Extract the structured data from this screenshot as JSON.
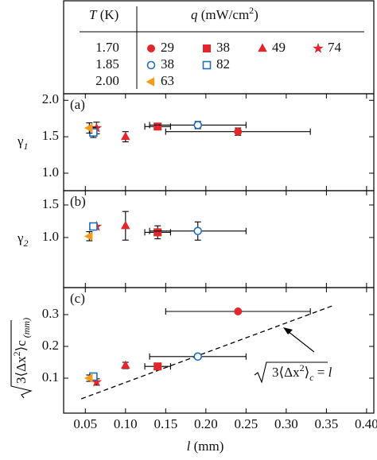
{
  "legend": {
    "t_header": [
      "T",
      " (K)"
    ],
    "q_header": [
      "q",
      " (mW/cm",
      "2",
      ")"
    ]
  },
  "chart_data": {
    "type": "scatter",
    "xlabel": [
      "l",
      " (mm)"
    ],
    "xlim": [
      0.023,
      0.409
    ],
    "xticks": [
      0.05,
      {
        "value": 0.1,
        "label": "0.10"
      },
      0.15,
      {
        "value": 0.2,
        "label": "0.20"
      },
      0.25,
      {
        "value": 0.3,
        "label": "0.30"
      },
      0.35,
      {
        "value": 0.4,
        "label": "0.40"
      }
    ],
    "panels": [
      {
        "label": "(a)",
        "ylabel": [
          "γ",
          "1"
        ],
        "ylim": [
          0.76,
          2.09
        ],
        "yticks": [
          {
            "value": 1,
            "label": "1.0"
          },
          1.5,
          {
            "value": 2,
            "label": "2.0"
          }
        ]
      },
      {
        "label": "(b)",
        "ylabel": [
          "γ",
          "2"
        ],
        "ylim": [
          0.23,
          1.72
        ],
        "yticks": [
          {
            "value": 1,
            "label": "1.0"
          },
          1.5
        ]
      },
      {
        "label": "(c)",
        "ylabel": [
          "3",
          "⟨Δx",
          "2",
          "⟩",
          "c",
          " (mm)"
        ],
        "ylim": [
          -0.01,
          0.385
        ],
        "yticks": [
          0.1,
          0.2,
          0.3
        ],
        "fit_line": {
          "x": [
            0.045,
            0.36
          ],
          "y": [
            0.035,
            0.33
          ]
        },
        "annotation": [
          "3",
          "⟨Δx",
          "2",
          "⟩",
          "c",
          " = ",
          "l"
        ]
      }
    ],
    "groups": [
      {
        "T": "1.70",
        "series": [
          {
            "name": "29",
            "marker": "circle",
            "filled": true,
            "color": "#e3262b",
            "x": 0.24,
            "xerr": 0.09,
            "y": [
              1.57,
              null,
              0.31
            ],
            "yerr": [
              0.05,
              null,
              null
            ]
          },
          {
            "name": "38",
            "marker": "square",
            "filled": true,
            "color": "#e3262b",
            "x": 0.14,
            "xerr": 0.016,
            "y": [
              1.64,
              1.08,
              0.137
            ],
            "yerr": [
              0.03,
              0.1,
              null
            ]
          },
          {
            "name": "49",
            "marker": "triangle",
            "filled": true,
            "color": "#e3262b",
            "x": 0.1,
            "xerr": null,
            "y": [
              1.5,
              1.18,
              0.14
            ],
            "yerr": [
              0.07,
              0.22,
              0.01
            ]
          },
          {
            "name": "74",
            "marker": "star",
            "filled": true,
            "color": "#e3262b",
            "x": 0.064,
            "xerr": null,
            "y": [
              1.62,
              1.17,
              0.088
            ],
            "yerr": [
              0.08,
              null,
              0.01
            ]
          }
        ]
      },
      {
        "T": "1.85",
        "series": [
          {
            "name": "38",
            "marker": "circle",
            "filled": false,
            "color": "#1f6fbf",
            "x": 0.19,
            "xerr": 0.06,
            "y": [
              1.66,
              1.1,
              0.168
            ],
            "yerr": [
              0.05,
              0.14,
              null
            ]
          },
          {
            "name": "82",
            "marker": "square",
            "filled": false,
            "color": "#1f6fbf",
            "x": 0.06,
            "xerr": null,
            "y": [
              1.56,
              1.17,
              0.105
            ],
            "yerr": [
              0.07,
              0.05,
              0.01
            ]
          }
        ]
      },
      {
        "T": "2.00",
        "series": [
          {
            "name": "63",
            "marker": "lefttriangle",
            "filled": true,
            "color": "#f39c1b",
            "x": 0.055,
            "xerr": null,
            "y": [
              1.62,
              1.02,
              0.1
            ],
            "yerr": [
              0.07,
              0.07,
              0.01
            ]
          }
        ]
      }
    ]
  }
}
